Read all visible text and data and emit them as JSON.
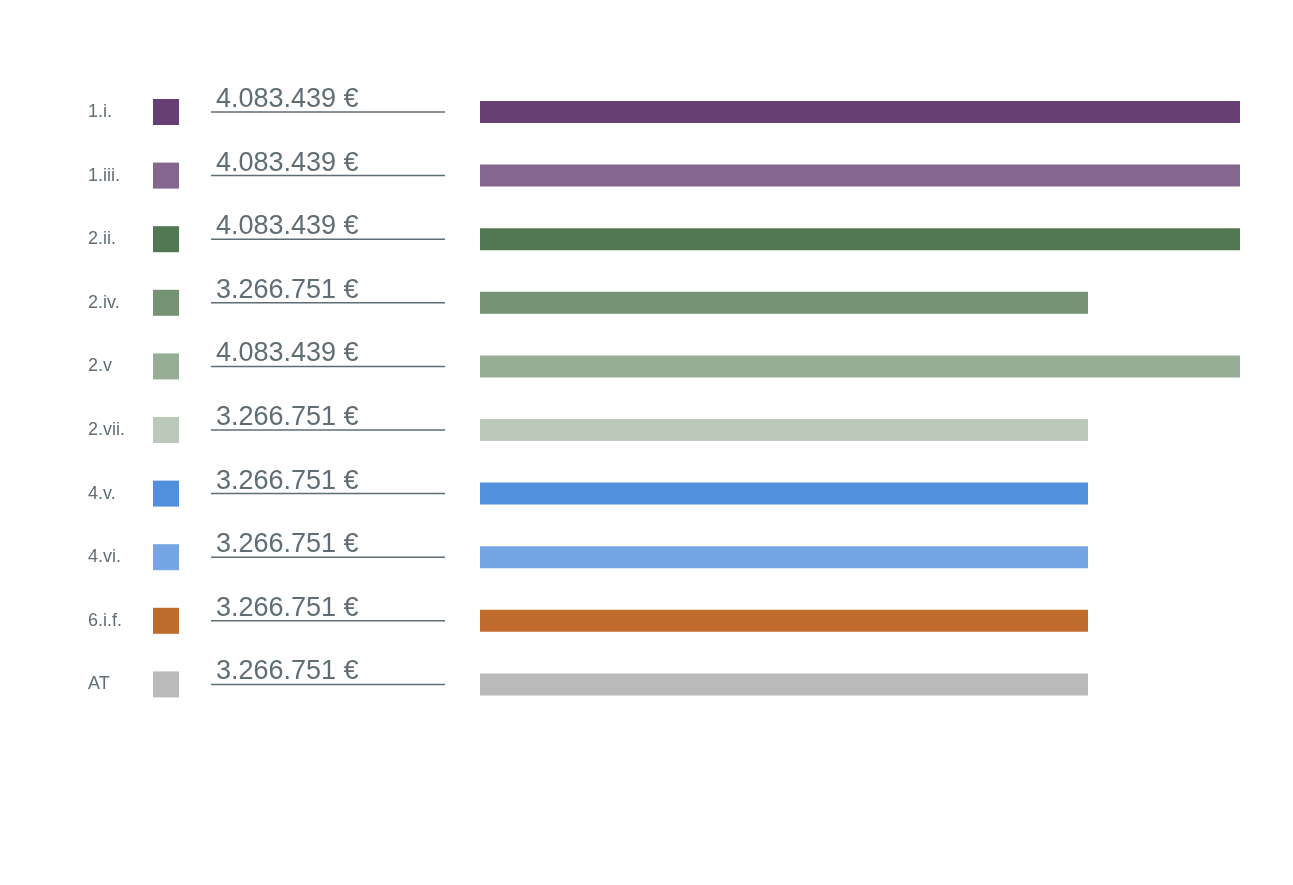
{
  "chart_data": {
    "type": "bar",
    "orientation": "horizontal",
    "categories": [
      "1.i.",
      "1.iii.",
      "2.ii.",
      "2.iv.",
      "2.v",
      "2.vii.",
      "4.v.",
      "4.vi.",
      "6.i.f.",
      "AT"
    ],
    "values": [
      4083439,
      4083439,
      4083439,
      3266751,
      4083439,
      3266751,
      3266751,
      3266751,
      3266751,
      3266751
    ],
    "value_labels": [
      "4.083.439 €",
      "4.083.439 €",
      "4.083.439 €",
      "3.266.751 €",
      "4.083.439 €",
      "3.266.751 €",
      "3.266.751 €",
      "3.266.751 €",
      "3.266.751 €",
      "3.266.751 €"
    ],
    "colors": [
      "#673f75",
      "#85668f",
      "#517850",
      "#749372",
      "#97ae96",
      "#bac9b9",
      "#5190dd",
      "#75a5e5",
      "#c06b2c",
      "#bababa"
    ]
  }
}
